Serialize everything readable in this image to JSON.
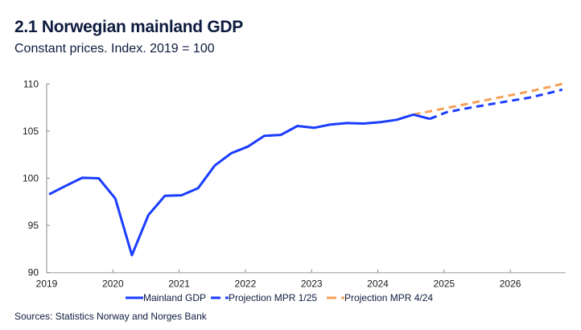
{
  "header": {
    "title": "2.1 Norwegian mainland GDP",
    "subtitle": "Constant prices. Index. 2019 = 100"
  },
  "footer": {
    "source": "Sources: Statistics Norway and Norges Bank"
  },
  "chart_data": {
    "type": "line",
    "title": "2.1 Norwegian mainland GDP",
    "subtitle": "Constant prices. Index. 2019 = 100",
    "xlabel": "",
    "ylabel": "",
    "x_ticks": [
      "2019",
      "2020",
      "2021",
      "2022",
      "2023",
      "2024",
      "2025",
      "2026"
    ],
    "xlim": [
      2019,
      2027
    ],
    "y_ticks": [
      90,
      95,
      100,
      105,
      110
    ],
    "ylim": [
      90,
      110
    ],
    "grid": false,
    "legend_position": "bottom",
    "frequency": "quarterly",
    "series": [
      {
        "name": "Mainland GDP",
        "color": "#1a3cff",
        "style": "solid",
        "start": "2019Q1",
        "values": [
          98.3,
          99.2,
          100.05,
          100.0,
          97.85,
          91.85,
          96.1,
          98.15,
          98.2,
          98.95,
          101.35,
          102.65,
          103.35,
          104.5,
          104.6,
          105.55,
          105.35,
          105.7,
          105.85,
          105.8,
          105.95,
          106.2,
          106.75,
          106.3
        ]
      },
      {
        "name": "Projection MPR 1/25",
        "color": "#1a3cff",
        "style": "dashed",
        "start": "2024Q4",
        "values": [
          106.3,
          107.0,
          107.35,
          107.65,
          107.95,
          108.25,
          108.55,
          108.95,
          109.4
        ]
      },
      {
        "name": "Projection MPR 4/24",
        "color": "#f4a259",
        "style": "dashed",
        "start": "2024Q3",
        "values": [
          106.75,
          107.1,
          107.45,
          107.8,
          108.15,
          108.5,
          108.85,
          109.2,
          109.6,
          110.0
        ]
      }
    ]
  }
}
